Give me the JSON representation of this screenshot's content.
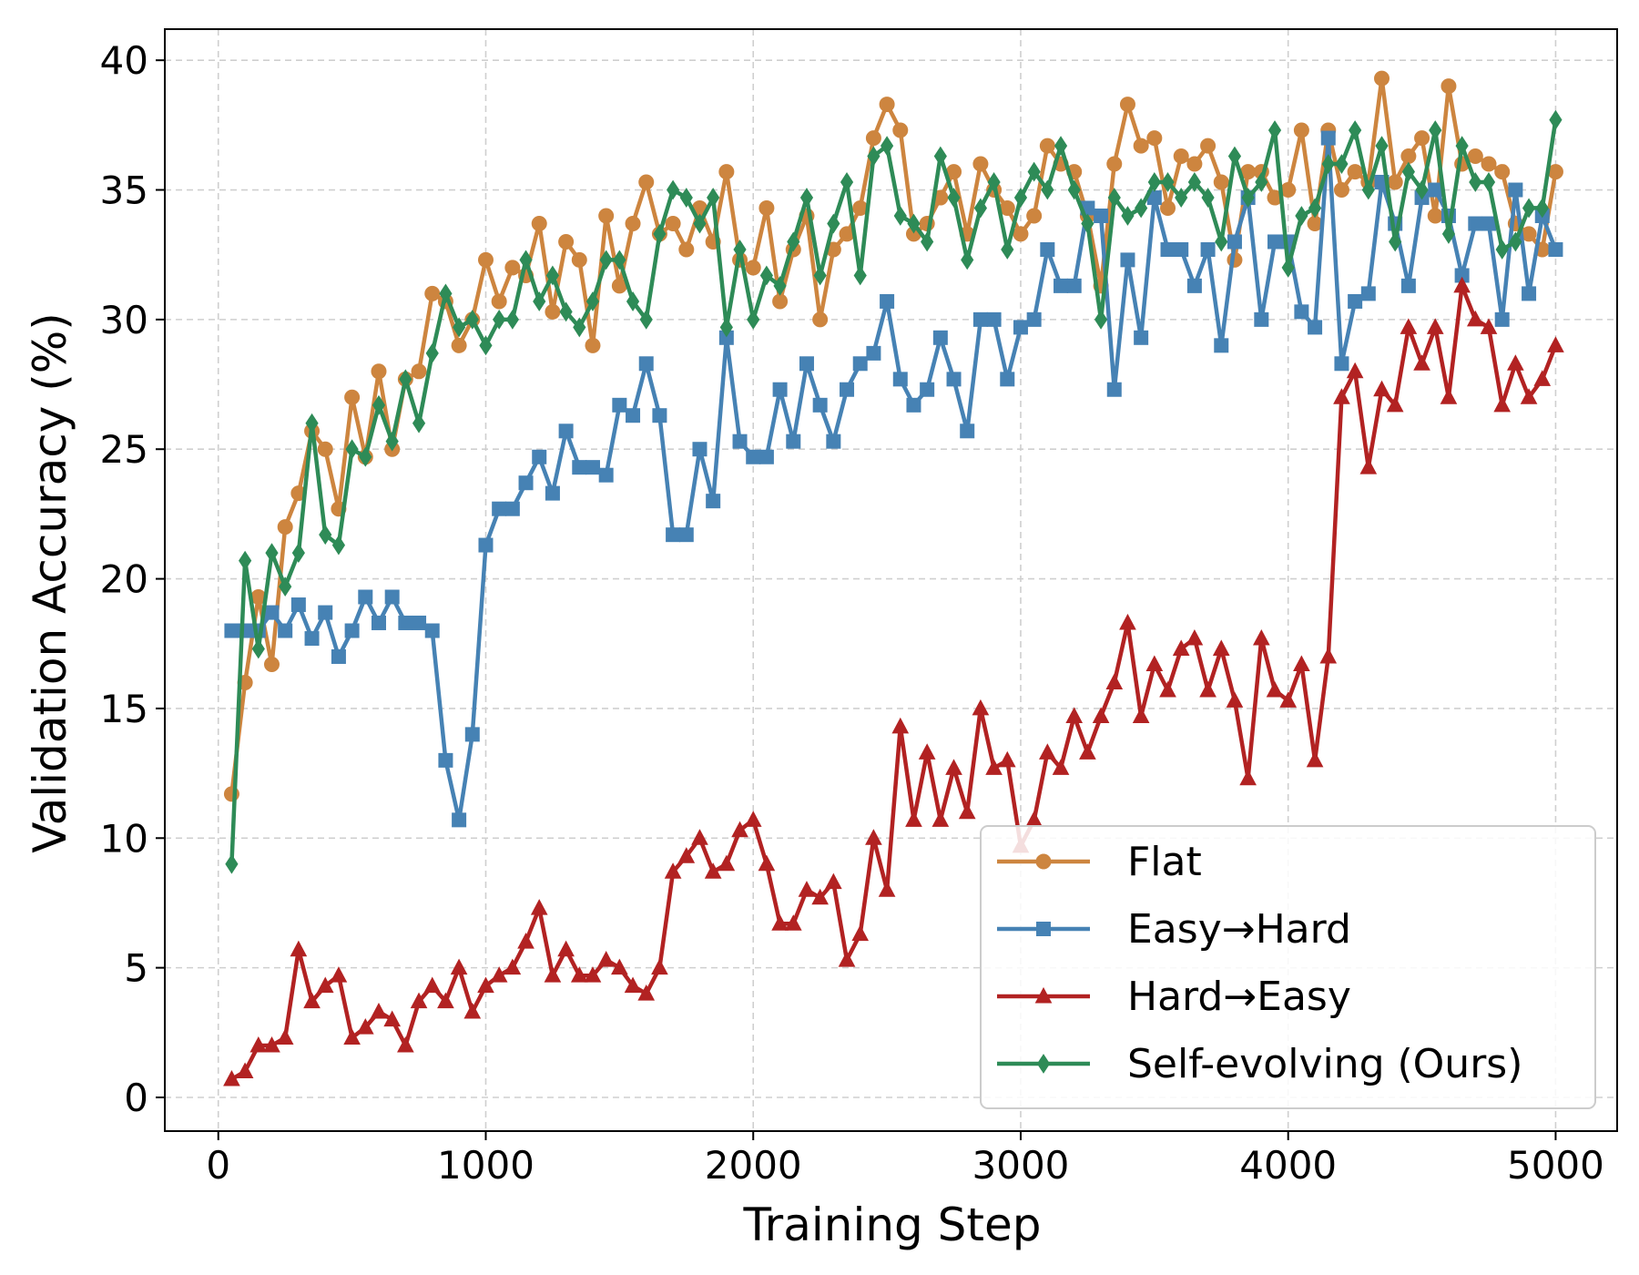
{
  "chart_data": {
    "type": "line",
    "title": "",
    "xlabel": "Training Step",
    "ylabel": "Validation Accuracy (%)",
    "xlim": [
      -200,
      5230
    ],
    "ylim": [
      -1.3,
      41.2
    ],
    "xticks": [
      0,
      1000,
      2000,
      3000,
      4000,
      5000
    ],
    "yticks": [
      0,
      5,
      10,
      15,
      20,
      25,
      30,
      35,
      40
    ],
    "grid": true,
    "legend_position": "bottom-right",
    "x": [
      50,
      100,
      150,
      200,
      250,
      300,
      350,
      400,
      450,
      500,
      550,
      600,
      650,
      700,
      750,
      800,
      850,
      900,
      950,
      1000,
      1050,
      1100,
      1150,
      1200,
      1250,
      1300,
      1350,
      1400,
      1450,
      1500,
      1550,
      1600,
      1650,
      1700,
      1750,
      1800,
      1850,
      1900,
      1950,
      2000,
      2050,
      2100,
      2150,
      2200,
      2250,
      2300,
      2350,
      2400,
      2450,
      2500,
      2550,
      2600,
      2650,
      2700,
      2750,
      2800,
      2850,
      2900,
      2950,
      3000,
      3050,
      3100,
      3150,
      3200,
      3250,
      3300,
      3350,
      3400,
      3450,
      3500,
      3550,
      3600,
      3650,
      3700,
      3750,
      3800,
      3850,
      3900,
      3950,
      4000,
      4050,
      4100,
      4150,
      4200,
      4250,
      4300,
      4350,
      4400,
      4450,
      4500,
      4550,
      4600,
      4650,
      4700,
      4750,
      4800,
      4850,
      4900,
      4950,
      5000
    ],
    "series": [
      {
        "name": "Flat",
        "color": "#cd853f",
        "marker": "circle",
        "values": [
          11.7,
          16.0,
          19.3,
          16.7,
          22.0,
          23.3,
          25.7,
          25.0,
          22.7,
          27.0,
          24.7,
          28.0,
          25.0,
          27.7,
          28.0,
          31.0,
          30.7,
          29.0,
          30.0,
          32.3,
          30.7,
          32.0,
          31.7,
          33.7,
          30.3,
          33.0,
          32.3,
          29.0,
          34.0,
          31.3,
          33.7,
          35.3,
          33.3,
          33.7,
          32.7,
          34.3,
          33.0,
          35.7,
          32.3,
          32.0,
          34.3,
          30.7,
          32.7,
          34.0,
          30.0,
          32.7,
          33.3,
          34.3,
          37.0,
          38.3,
          37.3,
          33.3,
          33.7,
          34.7,
          35.7,
          33.3,
          36.0,
          35.0,
          34.3,
          33.3,
          34.0,
          36.7,
          36.0,
          35.7,
          34.0,
          31.3,
          36.0,
          38.3,
          36.7,
          37.0,
          34.3,
          36.3,
          36.0,
          36.7,
          35.3,
          32.3,
          35.7,
          35.7,
          34.7,
          35.0,
          37.3,
          33.7,
          37.3,
          35.0,
          35.7,
          35.3,
          39.3,
          35.3,
          36.3,
          37.0,
          34.0,
          39.0,
          36.0,
          36.3,
          36.0,
          35.7,
          33.7,
          33.3,
          32.7,
          35.7
        ]
      },
      {
        "name": "Easy→Hard",
        "color": "#4682b4",
        "marker": "square",
        "values": [
          18.0,
          18.0,
          18.0,
          18.7,
          18.0,
          19.0,
          17.7,
          18.7,
          17.0,
          18.0,
          19.3,
          18.3,
          19.3,
          18.3,
          18.3,
          18.0,
          13.0,
          10.7,
          14.0,
          21.3,
          22.7,
          22.7,
          23.7,
          24.7,
          23.3,
          25.7,
          24.3,
          24.3,
          24.0,
          26.7,
          26.3,
          28.3,
          26.3,
          21.7,
          21.7,
          25.0,
          23.0,
          29.3,
          25.3,
          24.7,
          24.7,
          27.3,
          25.3,
          28.3,
          26.7,
          25.3,
          27.3,
          28.3,
          28.7,
          30.7,
          27.7,
          26.7,
          27.3,
          29.3,
          27.7,
          25.7,
          30.0,
          30.0,
          27.7,
          29.7,
          30.0,
          32.7,
          31.3,
          31.3,
          34.3,
          34.0,
          27.3,
          32.3,
          29.3,
          34.7,
          32.7,
          32.7,
          31.3,
          32.7,
          29.0,
          33.0,
          34.7,
          30.0,
          33.0,
          33.0,
          30.3,
          29.7,
          37.0,
          28.3,
          30.7,
          31.0,
          35.3,
          33.7,
          31.3,
          34.7,
          35.0,
          34.0,
          31.7,
          33.7,
          33.7,
          30.0,
          35.0,
          31.0,
          34.0,
          32.7
        ]
      },
      {
        "name": "Hard→Easy",
        "color": "#b22222",
        "marker": "triangle",
        "values": [
          0.7,
          1.0,
          2.0,
          2.0,
          2.3,
          5.7,
          3.7,
          4.3,
          4.7,
          2.3,
          2.7,
          3.3,
          3.0,
          2.0,
          3.7,
          4.3,
          3.7,
          5.0,
          3.3,
          4.3,
          4.7,
          5.0,
          6.0,
          7.3,
          4.7,
          5.7,
          4.7,
          4.7,
          5.3,
          5.0,
          4.3,
          4.0,
          5.0,
          8.7,
          9.3,
          10.0,
          8.7,
          9.0,
          10.3,
          10.7,
          9.0,
          6.7,
          6.7,
          8.0,
          7.7,
          8.3,
          5.3,
          6.3,
          10.0,
          8.0,
          14.3,
          10.7,
          13.3,
          10.7,
          12.7,
          11.0,
          15.0,
          12.7,
          13.0,
          9.7,
          10.7,
          13.3,
          12.7,
          14.7,
          13.3,
          14.7,
          16.0,
          18.3,
          14.7,
          16.7,
          15.7,
          17.3,
          17.7,
          15.7,
          17.3,
          15.3,
          12.3,
          17.7,
          15.7,
          15.3,
          16.7,
          13.0,
          17.0,
          27.0,
          28.0,
          24.3,
          27.3,
          26.7,
          29.7,
          28.3,
          29.7,
          27.0,
          31.3,
          30.0,
          29.7,
          26.7,
          28.3,
          27.0,
          27.7,
          29.0
        ]
      },
      {
        "name": "Self-evolving (Ours)",
        "color": "#2e8b57",
        "marker": "diamond",
        "values": [
          9.0,
          20.7,
          17.3,
          21.0,
          19.7,
          21.0,
          26.0,
          21.7,
          21.3,
          25.0,
          24.7,
          26.7,
          25.3,
          27.7,
          26.0,
          28.7,
          31.0,
          29.7,
          30.0,
          29.0,
          30.0,
          30.0,
          32.3,
          30.7,
          31.7,
          30.3,
          29.7,
          30.7,
          32.3,
          32.3,
          30.7,
          30.0,
          33.3,
          35.0,
          34.7,
          33.7,
          34.7,
          29.7,
          32.7,
          30.0,
          31.7,
          31.3,
          33.0,
          34.7,
          31.7,
          33.7,
          35.3,
          31.7,
          36.3,
          36.7,
          34.0,
          33.7,
          33.0,
          36.3,
          34.7,
          32.3,
          34.3,
          35.3,
          32.7,
          34.7,
          35.7,
          35.0,
          36.7,
          35.0,
          33.7,
          30.0,
          34.7,
          34.0,
          34.3,
          35.3,
          35.3,
          34.7,
          35.3,
          34.7,
          33.0,
          36.3,
          34.7,
          35.3,
          37.3,
          32.0,
          34.0,
          34.3,
          36.0,
          36.0,
          37.3,
          35.0,
          36.7,
          33.0,
          35.7,
          35.0,
          37.3,
          33.3,
          36.7,
          35.3,
          35.3,
          32.7,
          33.0,
          34.3,
          34.3,
          37.7
        ]
      }
    ]
  }
}
